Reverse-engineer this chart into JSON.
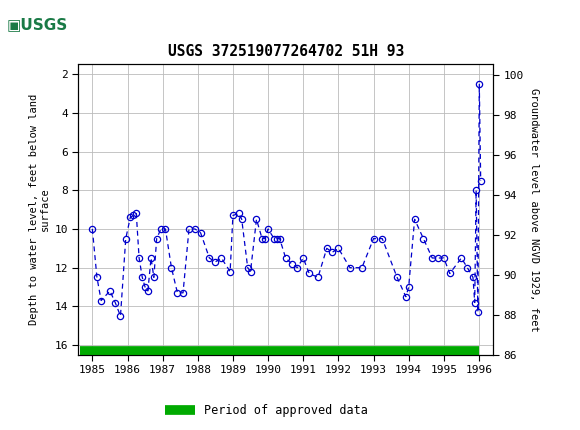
{
  "title": "USGS 372519077264702 51H 93",
  "ylabel_left": "Depth to water level, feet below land\nsurface",
  "ylabel_right": "Groundwater level above NGVD 1929, feet",
  "ylim_left": [
    16.5,
    1.5
  ],
  "ylim_right": [
    86.0,
    100.5
  ],
  "xlim": [
    1984.6,
    1996.4
  ],
  "yticks_left": [
    2,
    4,
    6,
    8,
    10,
    12,
    14,
    16
  ],
  "yticks_right": [
    86,
    88,
    90,
    92,
    94,
    96,
    98,
    100
  ],
  "xticks": [
    1985,
    1986,
    1987,
    1988,
    1989,
    1990,
    1991,
    1992,
    1993,
    1994,
    1995,
    1996
  ],
  "header_color": "#1a7a46",
  "line_color": "#0000cc",
  "marker_color": "#0000cc",
  "grid_color": "#bbbbbb",
  "approved_bar_color": "#00aa00",
  "legend_label": "Period of approved data",
  "dates": [
    1985.0,
    1985.13,
    1985.25,
    1985.5,
    1985.65,
    1985.8,
    1985.95,
    1986.08,
    1986.17,
    1986.25,
    1986.33,
    1986.42,
    1986.5,
    1986.58,
    1986.67,
    1986.75,
    1986.83,
    1986.95,
    1987.08,
    1987.25,
    1987.42,
    1987.58,
    1987.75,
    1987.92,
    1988.08,
    1988.33,
    1988.5,
    1988.67,
    1988.92,
    1989.0,
    1989.17,
    1989.25,
    1989.42,
    1989.5,
    1989.67,
    1989.83,
    1989.92,
    1990.0,
    1990.17,
    1990.25,
    1990.33,
    1990.5,
    1990.67,
    1990.83,
    1991.0,
    1991.17,
    1991.42,
    1991.67,
    1991.83,
    1992.0,
    1992.33,
    1992.67,
    1993.0,
    1993.25,
    1993.67,
    1993.92,
    1994.0,
    1994.17,
    1994.42,
    1994.67,
    1994.83,
    1995.0,
    1995.17,
    1995.5,
    1995.67,
    1995.83,
    1995.88,
    1995.92,
    1995.97,
    1996.01,
    1996.05
  ],
  "depths": [
    10.0,
    12.5,
    13.7,
    13.2,
    13.8,
    14.5,
    10.5,
    9.4,
    9.3,
    9.2,
    11.5,
    12.5,
    13.0,
    13.2,
    11.5,
    12.5,
    10.5,
    10.0,
    10.0,
    12.0,
    13.3,
    13.3,
    10.0,
    10.0,
    10.2,
    11.5,
    11.7,
    11.5,
    12.2,
    9.3,
    9.2,
    9.5,
    12.0,
    12.2,
    9.5,
    10.5,
    10.5,
    10.0,
    10.5,
    10.5,
    10.5,
    11.5,
    11.8,
    12.0,
    11.5,
    12.3,
    12.5,
    11.0,
    11.2,
    11.0,
    12.0,
    12.0,
    10.5,
    10.5,
    12.5,
    13.5,
    13.0,
    9.5,
    10.5,
    11.5,
    11.5,
    11.5,
    12.3,
    11.5,
    12.0,
    12.5,
    13.8,
    8.0,
    14.3,
    2.5,
    7.5
  ],
  "approved_start": 1984.65,
  "approved_end": 1996.0,
  "approved_y": 16.3
}
